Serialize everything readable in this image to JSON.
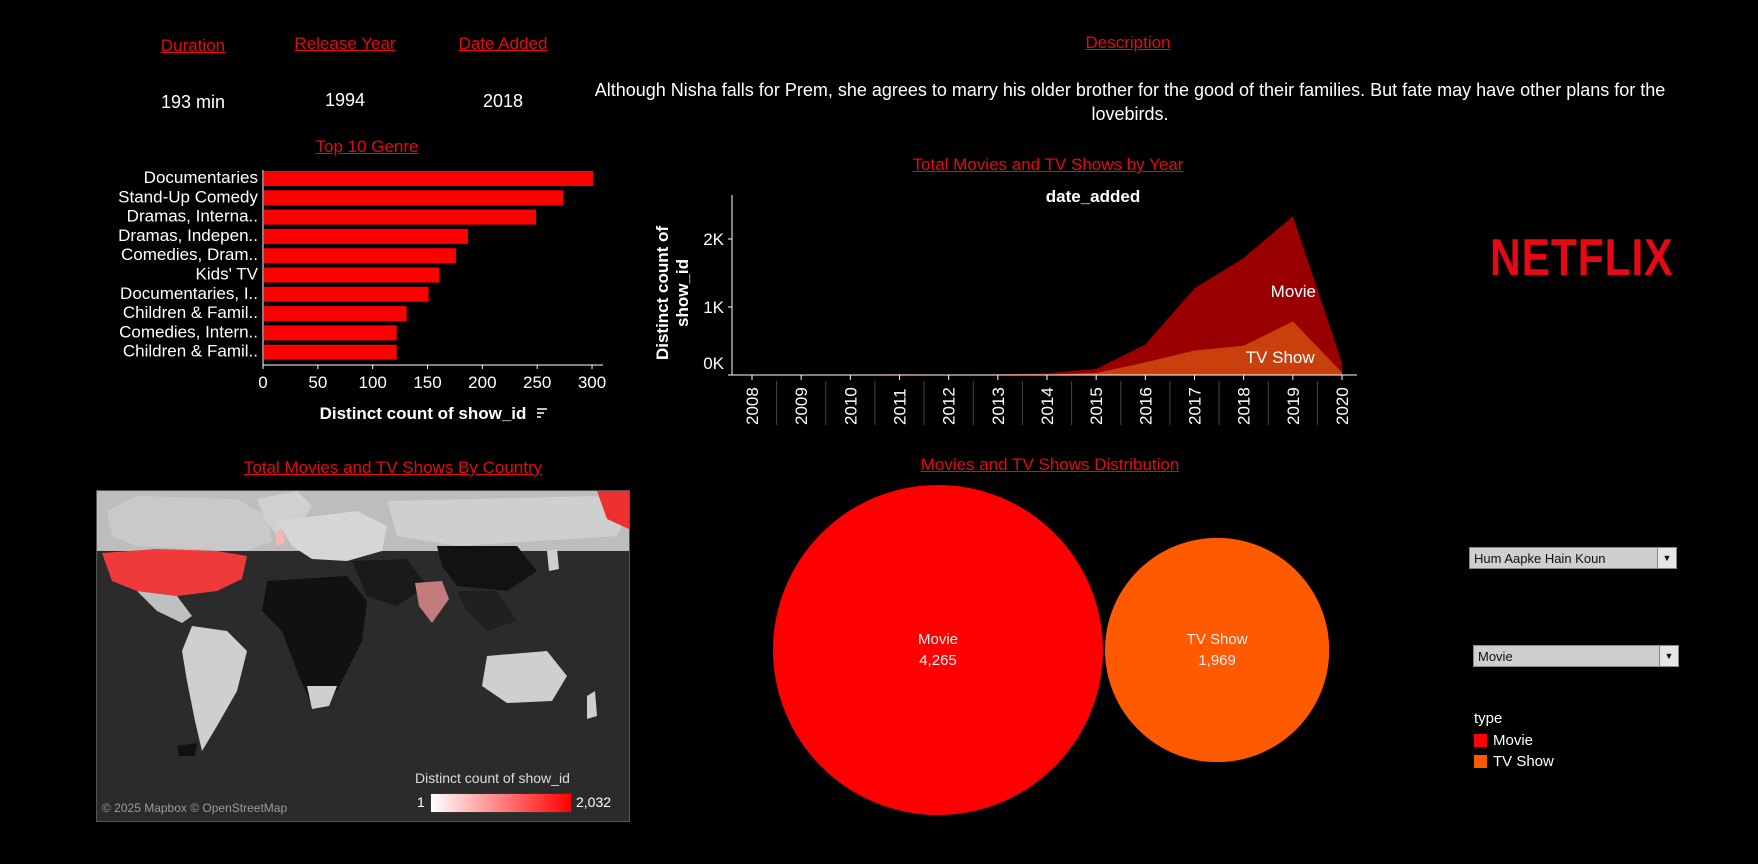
{
  "header": {
    "duration_label": "Duration",
    "duration_value": "193 min",
    "release_year_label": "Release Year",
    "release_year_value": "1994",
    "date_added_label": "Date Added",
    "date_added_value": "2018",
    "description_label": "Description",
    "description_text": "Although Nisha falls for Prem, she agrees to marry his older brother for the good of their families. But fate may have other plans for the lovebirds."
  },
  "logo": {
    "text": "NETFLIX",
    "color": "#e50914"
  },
  "filters": {
    "title_select": "Hum Aapke Hain Koun",
    "type_select": "Movie"
  },
  "legend": {
    "title": "type",
    "items": [
      {
        "label": "Movie",
        "color": "#ff0000"
      },
      {
        "label": "TV Show",
        "color": "#ff5a00"
      }
    ]
  },
  "map": {
    "title": "Total Movies and TV Shows By Country",
    "attribution": "© 2025 Mapbox © OpenStreetMap",
    "legend_title": "Distinct count of show_id",
    "legend_min": "1",
    "legend_max": "2,032"
  },
  "chart_data": [
    {
      "type": "bar",
      "orientation": "horizontal",
      "title": "Top 10 Genre",
      "xlabel": "Distinct count of show_id",
      "xlim": [
        0,
        310
      ],
      "xticks": [
        "0",
        "50",
        "100",
        "150",
        "200",
        "250",
        "300"
      ],
      "categories": [
        "Documentaries",
        "Stand-Up Comedy",
        "Dramas, Interna..",
        "Dramas, Indepen..",
        "Comedies, Dram..",
        "Kids' TV",
        "Documentaries, I..",
        "Children & Famil..",
        "Comedies, Intern..",
        "Children & Famil.."
      ],
      "values": [
        300,
        273,
        248,
        186,
        175,
        160,
        150,
        130,
        121,
        121
      ],
      "color": "#ff0000"
    },
    {
      "type": "area",
      "title": "Total Movies and TV Shows by Year",
      "subtitle": "date_added",
      "ylabel": "Distinct count of show_id",
      "yticks": [
        "0K",
        "1K",
        "2K"
      ],
      "ylim": [
        0,
        2500
      ],
      "x": [
        "2008",
        "2009",
        "2010",
        "2011",
        "2012",
        "2013",
        "2014",
        "2015",
        "2016",
        "2017",
        "2018",
        "2019",
        "2020"
      ],
      "series": [
        {
          "name": "Movie",
          "color": "#9b0000",
          "values": [
            1,
            2,
            1,
            13,
            3,
            6,
            19,
            58,
            264,
            913,
            1290,
            1546,
            147
          ]
        },
        {
          "name": "TV Show",
          "color": "#c8400c",
          "values": [
            1,
            0,
            0,
            0,
            0,
            5,
            6,
            30,
            185,
            361,
            430,
            788,
            37
          ]
        }
      ]
    },
    {
      "type": "bubble",
      "title": "Movies and TV Shows Distribution",
      "items": [
        {
          "label": "Movie",
          "value": 4265,
          "value_label": "4,265",
          "color": "#ff0000"
        },
        {
          "label": "TV Show",
          "value": 1969,
          "value_label": "1,969",
          "color": "#ff5a00"
        }
      ]
    }
  ]
}
